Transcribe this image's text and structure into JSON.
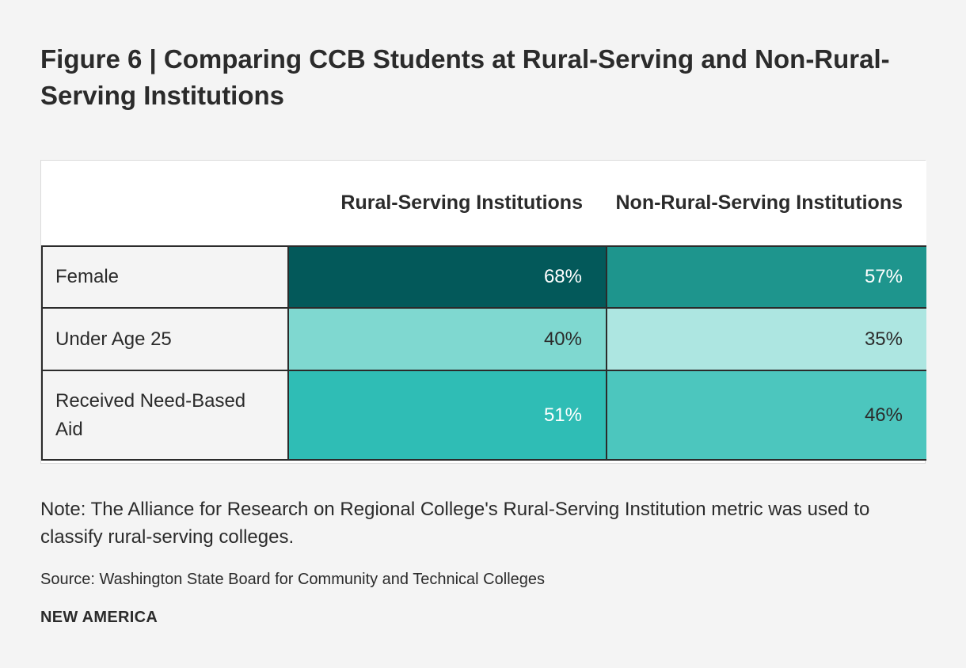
{
  "title": "Figure 6 | Comparing CCB Students at Rural-Serving and Non-Rural-Serving Institutions",
  "note": "Note: The Alliance for Research on Regional College's Rural-Serving Institution metric was used to classify rural-serving colleges.",
  "source": "Source: Washington State Board for Community and Technical Colleges",
  "brand": "NEW AMERICA",
  "chart_data": {
    "type": "table",
    "title": "Figure 6 | Comparing CCB Students at Rural-Serving and Non-Rural-Serving Institutions",
    "columns": [
      "",
      "Rural-Serving Institutions",
      "Non-Rural-Serving Institutions"
    ],
    "series": [
      {
        "name": "Rural-Serving Institutions",
        "values": [
          68,
          40,
          51
        ],
        "labels": [
          "68%",
          "40%",
          "51%"
        ]
      },
      {
        "name": "Non-Rural-Serving Institutions",
        "values": [
          57,
          35,
          46
        ],
        "labels": [
          "57%",
          "35%",
          "46%"
        ]
      }
    ],
    "rows": [
      {
        "label": "Female",
        "cells": [
          {
            "text": "68%",
            "value": 68,
            "bg": "#03595a",
            "fg": "#ffffff"
          },
          {
            "text": "57%",
            "value": 57,
            "bg": "#1e958d",
            "fg": "#ffffff"
          }
        ]
      },
      {
        "label": "Under Age 25",
        "cells": [
          {
            "text": "40%",
            "value": 40,
            "bg": "#7fd8d0",
            "fg": "#2b2b2b"
          },
          {
            "text": "35%",
            "value": 35,
            "bg": "#ade6e1",
            "fg": "#2b2b2b"
          }
        ]
      },
      {
        "label": "Received Need-Based Aid",
        "cells": [
          {
            "text": "51%",
            "value": 51,
            "bg": "#2fbdb5",
            "fg": "#ffffff"
          },
          {
            "text": "46%",
            "value": 46,
            "bg": "#4cc6be",
            "fg": "#2b2b2b"
          }
        ]
      }
    ]
  }
}
